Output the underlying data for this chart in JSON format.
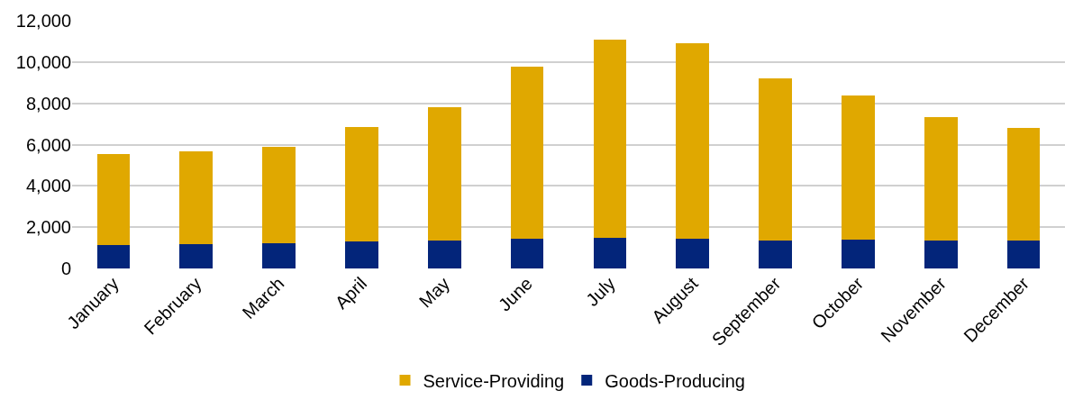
{
  "chart_data": {
    "type": "bar",
    "stacked": true,
    "categories": [
      "January",
      "February",
      "March",
      "April",
      "May",
      "June",
      "July",
      "August",
      "September",
      "October",
      "November",
      "December"
    ],
    "series": [
      {
        "name": "Goods-Producing",
        "color": "#03257a",
        "values": [
          1150,
          1200,
          1210,
          1300,
          1350,
          1440,
          1500,
          1450,
          1360,
          1390,
          1360,
          1360
        ]
      },
      {
        "name": "Service-Providing",
        "color": "#e0a800",
        "values": [
          4410,
          4490,
          4690,
          5560,
          6480,
          8340,
          9590,
          9480,
          7850,
          6970,
          5970,
          5460
        ]
      }
    ],
    "ylim": [
      0,
      12000
    ],
    "yticks": [
      {
        "value": 0,
        "label": "0"
      },
      {
        "value": 2000,
        "label": "2,000"
      },
      {
        "value": 4000,
        "label": "4,000"
      },
      {
        "value": 6000,
        "label": "6,000"
      },
      {
        "value": 8000,
        "label": "8,000"
      },
      {
        "value": 10000,
        "label": "10,000"
      },
      {
        "value": 12000,
        "label": "12,000"
      }
    ],
    "grid": "y",
    "legend": "bottom"
  }
}
